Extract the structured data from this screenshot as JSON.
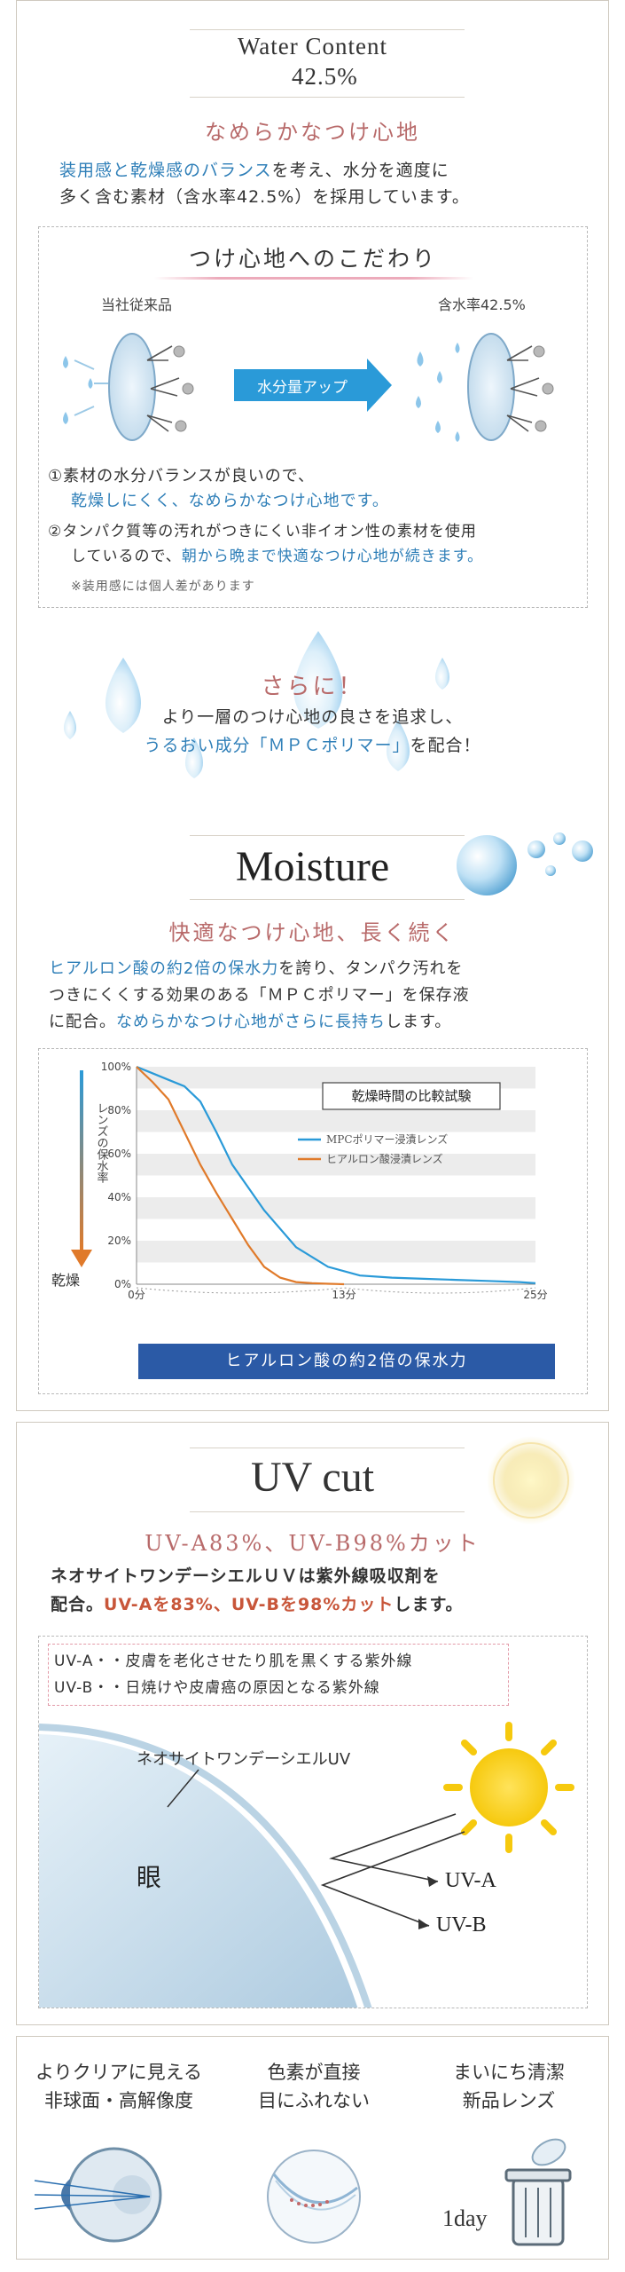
{
  "water": {
    "title": "Water Content",
    "value": "42.5%",
    "heading": "なめらかなつけ心地",
    "body_line1_blue": "装用感と乾燥感のバランス",
    "body_line1_rest": "を考え、水分を適度に",
    "body_line2": "多く含む素材（含水率42.5%）を採用しています。",
    "box": {
      "title": "つけ心地へのこだわり",
      "left_label": "当社従来品",
      "right_label": "含水率42.5%",
      "arrow_label": "水分量アップ",
      "point1_line1": "①素材の水分バランスが良いので、",
      "point1_line2": "乾燥しにくく、なめらかなつけ心地です。",
      "point2_line1": "②タンパク質等の汚れがつきにくい非イオン性の素材を使用",
      "point2_line2_plain": "しているので、",
      "point2_line2_blue": "朝から晩まで快適なつけ心地が続きます。",
      "note": "※装用感には個人差があります"
    },
    "more_title": "さらに！",
    "more_line1": "より一層のつけ心地の良さを追求し、",
    "more_line2_blue": "うるおい成分「ＭＰＣポリマー」",
    "more_line2_rest": "を配合！"
  },
  "moisture": {
    "title": "Moisture",
    "heading": "快適なつけ心地、長く続く",
    "line1_blue": "ヒアルロン酸の約2倍の保水力",
    "line1_rest": "を誇り、タンパク汚れを",
    "line2": "つきにくくする効果のある「ＭＰＣポリマー」を保存液",
    "line3_plain": "に配合。",
    "line3_blue": "なめらかなつけ心地がさらに長持ち",
    "line3_end": "します。",
    "banner": "ヒアルロン酸の約2倍の保水力"
  },
  "chart_data": {
    "type": "line",
    "title": "乾燥時間の比較試験",
    "ylabel": "レンズの保水率",
    "arrow_label": "乾燥",
    "x_ticks": [
      "0分",
      "13分",
      "25分"
    ],
    "y_ticks": [
      "100%",
      "80%",
      "60%",
      "40%",
      "20%",
      "0%"
    ],
    "xlim": [
      0,
      25
    ],
    "ylim": [
      0,
      100
    ],
    "series": [
      {
        "name": "MPCポリマー浸漬レンズ",
        "color": "#2a9ad8",
        "x": [
          0,
          1,
          2,
          3,
          4,
          5,
          6,
          8,
          10,
          12,
          14,
          16,
          18,
          20,
          22,
          24,
          25
        ],
        "y": [
          100,
          97,
          94,
          91,
          84,
          70,
          55,
          34,
          17,
          8,
          4,
          3,
          2.5,
          2,
          1.5,
          1,
          0.5
        ]
      },
      {
        "name": "ヒアルロン酸浸漬レンズ",
        "color": "#e07a2a",
        "x": [
          0,
          1,
          2,
          3,
          4,
          5,
          6,
          7,
          8,
          9,
          10,
          11,
          12,
          13
        ],
        "y": [
          100,
          93,
          85,
          70,
          55,
          42,
          30,
          18,
          8,
          3,
          1,
          0.5,
          0.2,
          0
        ]
      }
    ]
  },
  "uv": {
    "title": "UV cut",
    "heading": "UV-A83%、UV-B98%カット",
    "line1": "ネオサイトワンデーシエルＵＶは紫外線吸収剤を",
    "line2_plain": "配合。",
    "line2_red": "UV-Aを83%、UV-Bを98%カット",
    "line2_end": "します。",
    "box_line1": "UV-A・・皮膚を老化させたり肌を黒くする紫外線",
    "box_line2": "UV-B・・日焼けや皮膚癌の原因となる紫外線",
    "lens_label": "ネオサイトワンデーシエルUV",
    "eye_label": "眼",
    "uva_label": "UV-A",
    "uvb_label": "UV-B"
  },
  "features": [
    {
      "line1": "よりクリアに見える",
      "line2": "非球面・高解像度"
    },
    {
      "line1": "色素が直接",
      "line2": "目にふれない"
    },
    {
      "line1": "まいにち清潔",
      "line2": "新品レンズ"
    }
  ],
  "oneday_label": "1day",
  "colors": {
    "blue": "#2f7fb8",
    "rose": "#b86a6a",
    "banner": "#2b5aa6",
    "orange": "#e07a2a",
    "sky": "#2a9ad8"
  }
}
